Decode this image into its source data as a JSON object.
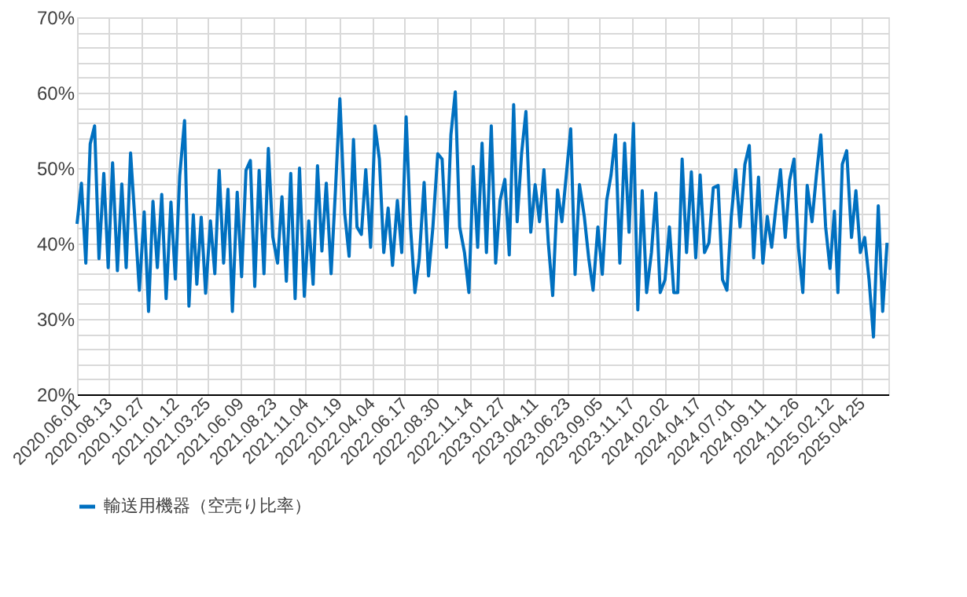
{
  "chart_data": {
    "type": "line",
    "x": [
      "2020-06-01",
      "2020-06-11",
      "2020-06-21",
      "2020-07-01",
      "2020-07-11",
      "2020-07-21",
      "2020-08-01",
      "2020-08-11",
      "2020-08-21",
      "2020-09-01",
      "2020-09-11",
      "2020-09-21",
      "2020-10-01",
      "2020-10-11",
      "2020-10-21",
      "2020-11-01",
      "2020-11-11",
      "2020-11-21",
      "2020-12-01",
      "2020-12-11",
      "2020-12-21",
      "2021-01-01",
      "2021-01-11",
      "2021-01-21",
      "2021-02-01",
      "2021-02-11",
      "2021-02-21",
      "2021-03-01",
      "2021-03-11",
      "2021-03-21",
      "2021-04-01",
      "2021-04-11",
      "2021-04-21",
      "2021-05-01",
      "2021-05-11",
      "2021-05-21",
      "2021-06-01",
      "2021-06-11",
      "2021-06-21",
      "2021-07-01",
      "2021-07-11",
      "2021-07-21",
      "2021-08-01",
      "2021-08-11",
      "2021-08-21",
      "2021-09-01",
      "2021-09-11",
      "2021-09-21",
      "2021-10-01",
      "2021-10-11",
      "2021-10-21",
      "2021-11-01",
      "2021-11-11",
      "2021-11-21",
      "2021-12-01",
      "2021-12-11",
      "2021-12-21",
      "2022-01-01",
      "2022-01-11",
      "2022-01-21",
      "2022-02-01",
      "2022-02-11",
      "2022-02-21",
      "2022-03-01",
      "2022-03-11",
      "2022-03-21",
      "2022-04-01",
      "2022-04-11",
      "2022-04-21",
      "2022-05-01",
      "2022-05-11",
      "2022-05-21",
      "2022-06-01",
      "2022-06-11",
      "2022-06-21",
      "2022-07-01",
      "2022-07-11",
      "2022-07-21",
      "2022-08-01",
      "2022-08-11",
      "2022-08-21",
      "2022-09-01",
      "2022-09-11",
      "2022-09-21",
      "2022-10-01",
      "2022-10-11",
      "2022-10-21",
      "2022-11-01",
      "2022-11-11",
      "2022-11-21",
      "2022-12-01",
      "2022-12-11",
      "2022-12-21",
      "2023-01-01",
      "2023-01-11",
      "2023-01-21",
      "2023-02-01",
      "2023-02-11",
      "2023-02-21",
      "2023-03-01",
      "2023-03-11",
      "2023-03-21",
      "2023-04-01",
      "2023-04-11",
      "2023-04-21",
      "2023-05-01",
      "2023-05-11",
      "2023-05-21",
      "2023-06-01",
      "2023-06-11",
      "2023-06-21",
      "2023-07-01",
      "2023-07-11",
      "2023-07-21",
      "2023-08-01",
      "2023-08-11",
      "2023-08-21",
      "2023-09-01",
      "2023-09-11",
      "2023-09-21",
      "2023-10-01",
      "2023-10-11",
      "2023-10-21",
      "2023-11-01",
      "2023-11-11",
      "2023-11-21",
      "2023-12-01",
      "2023-12-11",
      "2023-12-21",
      "2024-01-01",
      "2024-01-11",
      "2024-01-21",
      "2024-02-01",
      "2024-02-11",
      "2024-02-21",
      "2024-03-01",
      "2024-03-11",
      "2024-03-21",
      "2024-04-01",
      "2024-04-11",
      "2024-04-21",
      "2024-05-01",
      "2024-05-11",
      "2024-05-21",
      "2024-06-01",
      "2024-06-11",
      "2024-06-21",
      "2024-07-01",
      "2024-07-11",
      "2024-07-21",
      "2024-08-01",
      "2024-08-11",
      "2024-08-21",
      "2024-09-01",
      "2024-09-11",
      "2024-09-21",
      "2024-10-01",
      "2024-10-11",
      "2024-10-21",
      "2024-11-01",
      "2024-11-11",
      "2024-11-21",
      "2024-12-01",
      "2024-12-11",
      "2024-12-21",
      "2025-01-01",
      "2025-01-11",
      "2025-01-21",
      "2025-02-01",
      "2025-02-11",
      "2025-02-21",
      "2025-03-01",
      "2025-03-11",
      "2025-03-21",
      "2025-04-01",
      "2025-04-11",
      "2025-04-21",
      "2025-05-01",
      "2025-05-11",
      "2025-05-21",
      "2025-06-01",
      "2025-06-11",
      "2025-06-21"
    ],
    "series": [
      {
        "name": "輸送用機器（空売り比率）",
        "color": "#0070c0",
        "values": [
          42.6,
          48,
          37.4,
          53.2,
          55.6,
          38,
          49.3,
          36.8,
          50.7,
          36.4,
          47.9,
          36.8,
          52,
          43,
          33.8,
          44.2,
          31,
          45.6,
          36.8,
          46.5,
          32.7,
          45.5,
          35.3,
          49,
          56.3,
          31.7,
          43.8,
          34.6,
          43.5,
          33.4,
          43,
          36,
          49.7,
          37.4,
          47.2,
          31,
          46.8,
          35.6,
          49.7,
          51,
          34.3,
          49.7,
          36,
          52.6,
          40.9,
          37.4,
          46.2,
          35,
          49.3,
          32.7,
          50,
          33,
          43,
          34.6,
          50.3,
          39,
          48,
          36,
          47.2,
          59.2,
          44,
          38.3,
          53.8,
          42.2,
          41.2,
          49.8,
          39.5,
          55.6,
          51.2,
          38.8,
          44.7,
          37.1,
          45.7,
          38.8,
          56.8,
          42.2,
          33.5,
          38.1,
          48.1,
          35.7,
          42.2,
          51.9,
          51.2,
          39.5,
          54.4,
          60.1,
          42.2,
          38.8,
          33.5,
          50.2,
          39.5,
          53.3,
          38.8,
          55.6,
          37.4,
          45.7,
          48.5,
          38.5,
          58.4,
          42.9,
          51.9,
          57.5,
          41.5,
          47.8,
          42.9,
          49.8,
          40.1,
          33.1,
          47.1,
          42.9,
          49.1,
          55.2,
          35.9,
          47.8,
          43.6,
          38.1,
          33.8,
          42.2,
          35.9,
          45.7,
          49.1,
          54.4,
          37.4,
          53.3,
          41.5,
          55.9,
          31.2,
          47,
          33.5,
          38.8,
          46.7,
          33.5,
          35.2,
          42.2,
          33.5,
          33.5,
          51.2,
          38.8,
          49.5,
          38.1,
          49.1,
          38.8,
          40.1,
          47.4,
          47.7,
          35.2,
          33.8,
          43.6,
          49.8,
          42.2,
          50.5,
          53,
          38.1,
          48.8,
          37.4,
          43.6,
          39.5,
          45,
          49.8,
          40.8,
          48.4,
          51.2,
          39.5,
          33.5,
          47.7,
          42.9,
          49.1,
          54.4,
          42.2,
          36.7,
          44.3,
          33.5,
          50.5,
          52.3,
          40.8,
          47,
          38.8,
          40.8,
          35.2,
          27.6,
          45,
          31,
          40.1
        ]
      }
    ],
    "xlim": [
      "2020-06-01",
      "2025-06-24"
    ],
    "xticks": [
      {
        "value": "2020-06-01",
        "label": "2020.06.01"
      },
      {
        "value": "2020-08-13",
        "label": "2020.08.13"
      },
      {
        "value": "2020-10-27",
        "label": "2020.10.27"
      },
      {
        "value": "2021-01-12",
        "label": "2021.01.12"
      },
      {
        "value": "2021-03-25",
        "label": "2021.03.25"
      },
      {
        "value": "2021-06-09",
        "label": "2021.06.09"
      },
      {
        "value": "2021-08-23",
        "label": "2021.08.23"
      },
      {
        "value": "2021-11-04",
        "label": "2021.11.04"
      },
      {
        "value": "2022-01-19",
        "label": "2022.01.19"
      },
      {
        "value": "2022-04-04",
        "label": "2022.04.04"
      },
      {
        "value": "2022-06-17",
        "label": "2022.06.17"
      },
      {
        "value": "2022-08-30",
        "label": "2022.08.30"
      },
      {
        "value": "2022-11-14",
        "label": "2022.11.14"
      },
      {
        "value": "2023-01-27",
        "label": "2023.01.27"
      },
      {
        "value": "2023-04-11",
        "label": "2023.04.11"
      },
      {
        "value": "2023-06-23",
        "label": "2023.06.23"
      },
      {
        "value": "2023-09-05",
        "label": "2023.09.05"
      },
      {
        "value": "2023-11-17",
        "label": "2023.11.17"
      },
      {
        "value": "2024-02-02",
        "label": "2024.02.02"
      },
      {
        "value": "2024-04-17",
        "label": "2024.04.17"
      },
      {
        "value": "2024-07-01",
        "label": "2024.07.01"
      },
      {
        "value": "2024-09-11",
        "label": "2024.09.11"
      },
      {
        "value": "2024-11-26",
        "label": "2024.11.26"
      },
      {
        "value": "2025-02-12",
        "label": "2025.02.12"
      },
      {
        "value": "2025-04-25",
        "label": "2025.04.25"
      }
    ],
    "ylim": [
      20,
      70
    ],
    "yticks": [
      {
        "value": 20,
        "label": "20%"
      },
      {
        "value": 22,
        "label": null
      },
      {
        "value": 24,
        "label": null
      },
      {
        "value": 26,
        "label": null
      },
      {
        "value": 28,
        "label": null
      },
      {
        "value": 30,
        "label": "30%"
      },
      {
        "value": 32,
        "label": null
      },
      {
        "value": 34,
        "label": null
      },
      {
        "value": 36,
        "label": null
      },
      {
        "value": 38,
        "label": null
      },
      {
        "value": 40,
        "label": "40%"
      },
      {
        "value": 42,
        "label": null
      },
      {
        "value": 44,
        "label": null
      },
      {
        "value": 46,
        "label": null
      },
      {
        "value": 48,
        "label": null
      },
      {
        "value": 50,
        "label": "50%"
      },
      {
        "value": 52,
        "label": null
      },
      {
        "value": 54,
        "label": null
      },
      {
        "value": 56,
        "label": null
      },
      {
        "value": 58,
        "label": null
      },
      {
        "value": 60,
        "label": "60%"
      },
      {
        "value": 62,
        "label": null
      },
      {
        "value": 64,
        "label": null
      },
      {
        "value": 66,
        "label": null
      },
      {
        "value": 68,
        "label": null
      },
      {
        "value": 70,
        "label": "70%"
      }
    ],
    "grid": true,
    "legend": "bottom",
    "marker": "none",
    "line_style": "solid"
  }
}
